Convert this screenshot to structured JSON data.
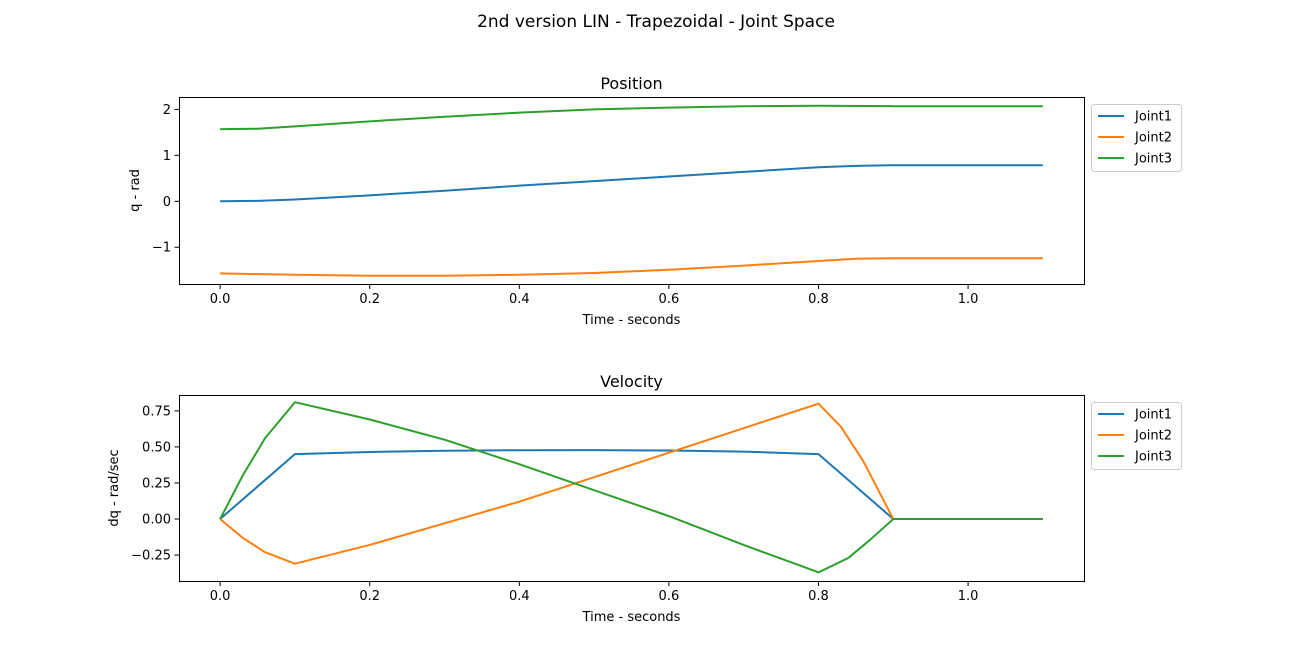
{
  "figure": {
    "suptitle": "2nd version LIN - Trapezoidal - Joint Space"
  },
  "colors": {
    "Joint1": "#1f77b4",
    "Joint2": "#ff7f0e",
    "Joint3": "#2ca02c"
  },
  "chart_data": [
    {
      "type": "line",
      "title": "Position",
      "xlabel": "Time - seconds",
      "ylabel": "q - rad",
      "xlim": [
        -0.055,
        1.155
      ],
      "ylim": [
        -1.8,
        2.27
      ],
      "xticks": [
        0.0,
        0.2,
        0.4,
        0.6,
        0.8,
        1.0
      ],
      "xtick_labels": [
        "0.0",
        "0.2",
        "0.4",
        "0.6",
        "0.8",
        "1.0"
      ],
      "yticks": [
        -1,
        0,
        1,
        2
      ],
      "ytick_labels": [
        "−1",
        "0",
        "1",
        "2"
      ],
      "legend": "outside-upper-right",
      "series": [
        {
          "name": "Joint1",
          "color": "#1f77b4",
          "x": [
            0,
            0.05,
            0.1,
            0.2,
            0.3,
            0.4,
            0.5,
            0.6,
            0.7,
            0.8,
            0.85,
            0.9,
            1.0,
            1.1
          ],
          "y": [
            0,
            0.01,
            0.04,
            0.13,
            0.23,
            0.34,
            0.44,
            0.54,
            0.64,
            0.74,
            0.77,
            0.785,
            0.785,
            0.785
          ]
        },
        {
          "name": "Joint2",
          "color": "#ff7f0e",
          "x": [
            0,
            0.1,
            0.2,
            0.3,
            0.4,
            0.5,
            0.6,
            0.7,
            0.8,
            0.85,
            0.9,
            1.0,
            1.1
          ],
          "y": [
            -1.57,
            -1.6,
            -1.62,
            -1.62,
            -1.6,
            -1.56,
            -1.49,
            -1.4,
            -1.3,
            -1.25,
            -1.24,
            -1.24,
            -1.24
          ]
        },
        {
          "name": "Joint3",
          "color": "#2ca02c",
          "x": [
            0,
            0.05,
            0.1,
            0.2,
            0.3,
            0.4,
            0.5,
            0.6,
            0.7,
            0.8,
            0.9,
            1.0,
            1.1
          ],
          "y": [
            1.57,
            1.58,
            1.63,
            1.74,
            1.84,
            1.93,
            2.0,
            2.04,
            2.07,
            2.08,
            2.07,
            2.07,
            2.07
          ]
        }
      ]
    },
    {
      "type": "line",
      "title": "Velocity",
      "xlabel": "Time - seconds",
      "ylabel": "dq - rad/sec",
      "xlim": [
        -0.055,
        1.155
      ],
      "ylim": [
        -0.43,
        0.86
      ],
      "xticks": [
        0.0,
        0.2,
        0.4,
        0.6,
        0.8,
        1.0
      ],
      "xtick_labels": [
        "0.0",
        "0.2",
        "0.4",
        "0.6",
        "0.8",
        "1.0"
      ],
      "yticks": [
        -0.25,
        0.0,
        0.25,
        0.5,
        0.75
      ],
      "ytick_labels": [
        "−0.25",
        "0.00",
        "0.25",
        "0.50",
        "0.75"
      ],
      "legend": "outside-upper-right",
      "series": [
        {
          "name": "Joint1",
          "color": "#1f77b4",
          "x": [
            0,
            0.1,
            0.2,
            0.3,
            0.4,
            0.5,
            0.6,
            0.7,
            0.8,
            0.9,
            1.0,
            1.1
          ],
          "y": [
            0,
            0.45,
            0.465,
            0.473,
            0.477,
            0.478,
            0.475,
            0.467,
            0.45,
            0,
            0,
            0
          ]
        },
        {
          "name": "Joint2",
          "color": "#ff7f0e",
          "x": [
            0,
            0.03,
            0.06,
            0.1,
            0.2,
            0.3,
            0.4,
            0.5,
            0.6,
            0.7,
            0.8,
            0.83,
            0.86,
            0.9,
            1.0,
            1.1
          ],
          "y": [
            0,
            -0.13,
            -0.23,
            -0.31,
            -0.18,
            -0.03,
            0.12,
            0.29,
            0.46,
            0.63,
            0.8,
            0.64,
            0.4,
            0,
            0,
            0
          ]
        },
        {
          "name": "Joint3",
          "color": "#2ca02c",
          "x": [
            0,
            0.03,
            0.06,
            0.1,
            0.2,
            0.3,
            0.4,
            0.5,
            0.6,
            0.7,
            0.8,
            0.84,
            0.87,
            0.9,
            1.0,
            1.1
          ],
          "y": [
            0,
            0.3,
            0.56,
            0.81,
            0.69,
            0.55,
            0.38,
            0.2,
            0.02,
            -0.18,
            -0.37,
            -0.27,
            -0.14,
            0,
            0,
            0
          ]
        }
      ]
    }
  ]
}
